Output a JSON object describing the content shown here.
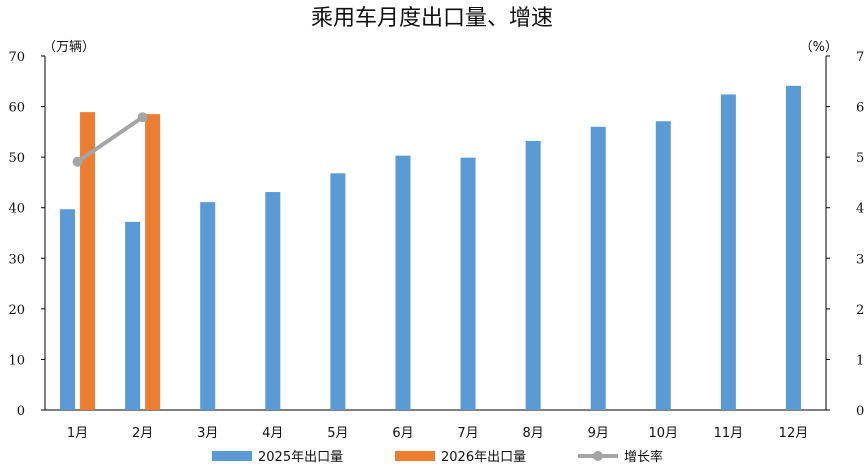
{
  "chart_data": {
    "type": "bar",
    "title": "乘用车月度出口量、增速",
    "y_left_unit": "（万辆）",
    "y_right_unit": "（%）",
    "ylim": [
      0,
      70
    ],
    "y2lim": [
      0,
      70
    ],
    "yticks": [
      0,
      10,
      20,
      30,
      40,
      50,
      60,
      70
    ],
    "categories": [
      "1月",
      "2月",
      "3月",
      "4月",
      "5月",
      "6月",
      "7月",
      "8月",
      "9月",
      "10月",
      "11月",
      "12月"
    ],
    "series": [
      {
        "name": "2025年出口量",
        "type": "bar",
        "axis": "left",
        "color": "#5b9bd5",
        "values": [
          39.7,
          37.2,
          41.1,
          43.1,
          46.8,
          50.3,
          49.9,
          53.2,
          56.0,
          57.1,
          62.4,
          64.1
        ]
      },
      {
        "name": "2026年出口量",
        "type": "bar",
        "axis": "left",
        "color": "#ed7d31",
        "values": [
          58.9,
          58.5,
          null,
          null,
          null,
          null,
          null,
          null,
          null,
          null,
          null,
          null
        ]
      },
      {
        "name": "增长率",
        "type": "line",
        "axis": "right",
        "color": "#a5a5a5",
        "values": [
          49.1,
          57.9,
          null,
          null,
          null,
          null,
          null,
          null,
          null,
          null,
          null,
          null
        ]
      }
    ],
    "legend_position": "bottom",
    "grid": false
  }
}
